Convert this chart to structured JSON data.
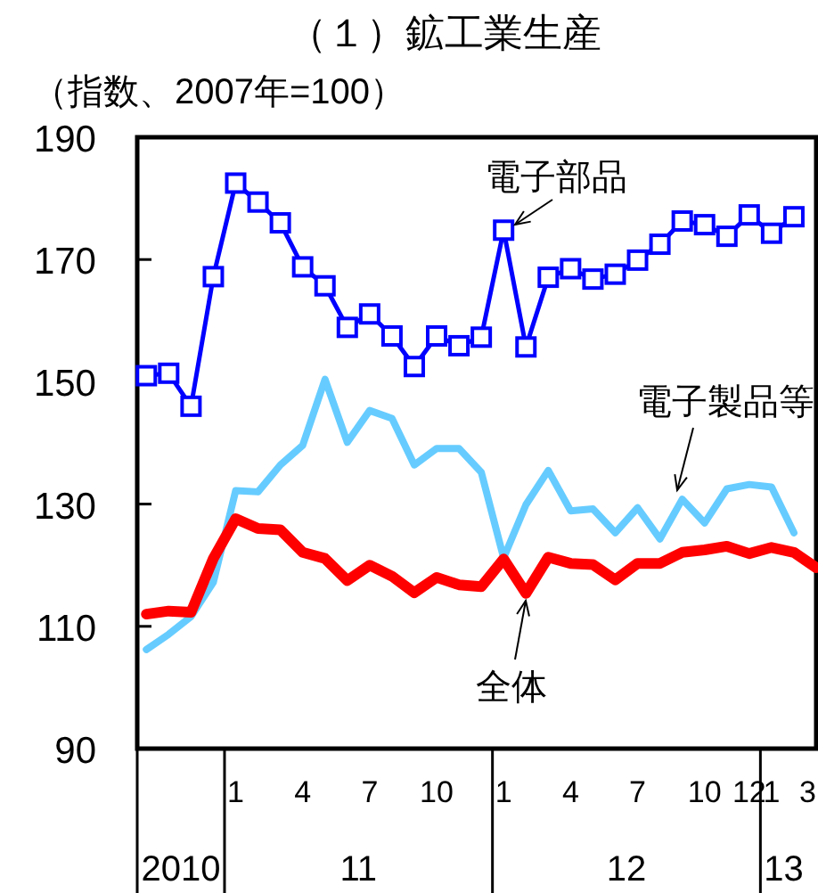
{
  "chart_data": {
    "type": "line",
    "title": "（１）鉱工業生産",
    "ylabel": "（指数、2007年=100）",
    "x": [
      "2010-09",
      "2010-10",
      "2010-11",
      "2010-12",
      "2011-01",
      "2011-02",
      "2011-03",
      "2011-04",
      "2011-05",
      "2011-06",
      "2011-07",
      "2011-08",
      "2011-09",
      "2011-10",
      "2011-11",
      "2011-12",
      "2012-01",
      "2012-02",
      "2012-03",
      "2012-04",
      "2012-05",
      "2012-06",
      "2012-07",
      "2012-08",
      "2012-09",
      "2012-10",
      "2012-11",
      "2012-12",
      "2013-01",
      "2013-02",
      "2013-03"
    ],
    "xlim": [
      "2010-08-19",
      "2013-03-01"
    ],
    "xticks": [
      {
        "value": "2011-01",
        "label": "1"
      },
      {
        "value": "2011-04",
        "label": "4"
      },
      {
        "value": "2011-07",
        "label": "7"
      },
      {
        "value": "2011-10",
        "label": "10"
      },
      {
        "value": "2012-01",
        "label": "1"
      },
      {
        "value": "2012-04",
        "label": "4"
      },
      {
        "value": "2012-07",
        "label": "7"
      },
      {
        "value": "2012-10",
        "label": "10"
      },
      {
        "value": "2012-12",
        "label": "12"
      },
      {
        "value": "2013-01",
        "label": "1"
      },
      {
        "value": "2013-03",
        "label": "3"
      }
    ],
    "ylim": [
      90,
      190
    ],
    "yticks": [
      90,
      110,
      130,
      150,
      170,
      190
    ],
    "series": [
      {
        "name": "電子部品",
        "color": "#0000ff",
        "marker": "square",
        "values": [
          151.0,
          151.4,
          146,
          167.2,
          182.5,
          179.4,
          176,
          168.8,
          165.7,
          158.9,
          161.1,
          157.5,
          152.5,
          157.5,
          155.9,
          157.3,
          174.8,
          155.7,
          167.1,
          168.5,
          166.8,
          167.6,
          169.9,
          172.5,
          176.3,
          175.7,
          173.8,
          177.3,
          174.3,
          177,
          null
        ]
      },
      {
        "name": "電子製品等",
        "color": "#66ccff",
        "values": [
          106.2,
          108.7,
          111.6,
          117.2,
          132.2,
          132,
          136.4,
          139.6,
          150.4,
          140.1,
          145.3,
          144,
          136.4,
          139.1,
          139.1,
          135.2,
          121.2,
          129.9,
          135.5,
          128.9,
          129.2,
          125.3,
          129.4,
          124.3,
          130.8,
          126.9,
          132.5,
          133.2,
          132.8,
          125.3,
          null
        ]
      },
      {
        "name": "全体",
        "color": "#ff0000",
        "values": [
          112.0,
          112.5,
          112.3,
          121.1,
          127.6,
          126,
          125.8,
          122.1,
          121.1,
          117.5,
          120,
          118.2,
          115.5,
          118,
          116.8,
          116.5,
          121,
          115.4,
          121.3,
          120.3,
          120.1,
          117.6,
          120.3,
          120.3,
          122.1,
          122.5,
          123.1,
          121.9,
          122.9,
          122.1,
          119.6
        ]
      }
    ],
    "annotations": [
      "2010",
      "11",
      "12",
      "13"
    ]
  }
}
